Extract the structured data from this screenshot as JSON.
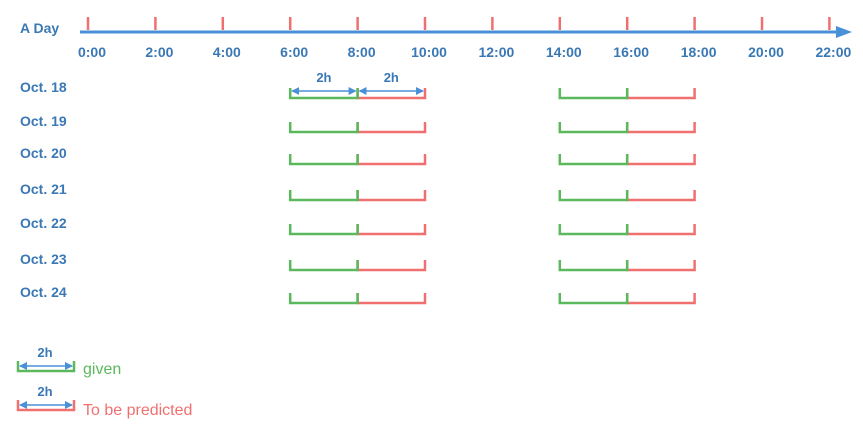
{
  "title": "A Day",
  "hours": [
    "0:00",
    "2:00",
    "4:00",
    "6:00",
    "8:00",
    "10:00",
    "12:00",
    "14:00",
    "16:00",
    "18:00",
    "20:00",
    "22:00"
  ],
  "rows": [
    "Oct. 18",
    "Oct. 19",
    "Oct. 20",
    "Oct. 21",
    "Oct. 22",
    "Oct. 23",
    "Oct. 24"
  ],
  "windows": [
    {
      "given": [
        6,
        8
      ],
      "predicted": [
        8,
        10
      ]
    },
    {
      "given": [
        14,
        16
      ],
      "predicted": [
        16,
        18
      ]
    }
  ],
  "duration_label": "2h",
  "legend": {
    "given_label": "given",
    "predicted_label": "To be predicted",
    "duration_label": "2h"
  },
  "colors": {
    "axis": "#4a90d9",
    "text": "#3a78b5",
    "given": "#5cb85c",
    "predicted": "#f07070",
    "arrow": "#4a90d9"
  }
}
